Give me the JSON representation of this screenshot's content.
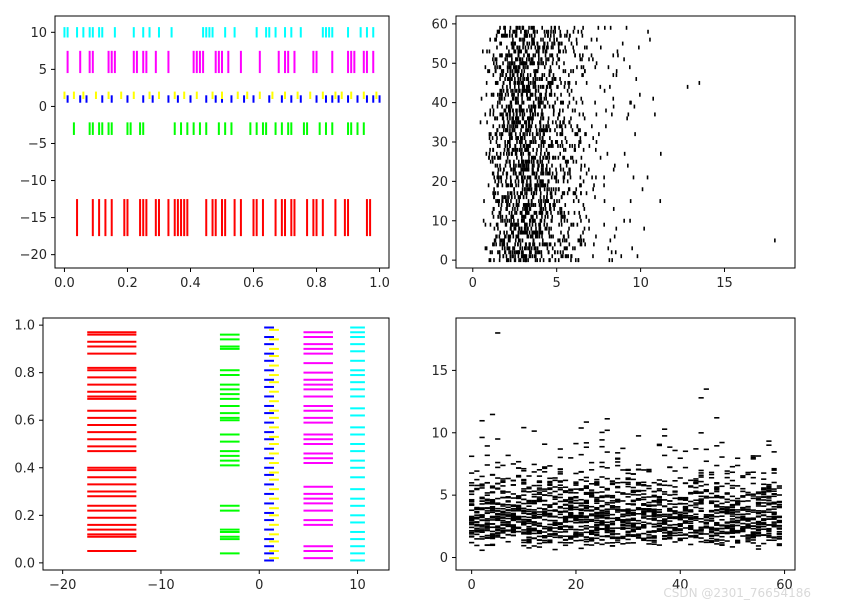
{
  "chart_data": [
    {
      "type": "eventplot",
      "orientation": "horizontal",
      "title": "",
      "xlabel": "",
      "ylabel": "",
      "xlim": [
        -0.03,
        1.03
      ],
      "ylim": [
        -21.8,
        12.2
      ],
      "xticks": [
        0.0,
        0.2,
        0.4,
        0.6,
        0.8,
        1.0
      ],
      "xtick_labels": [
        "0.0",
        "0.2",
        "0.4",
        "0.6",
        "0.8",
        "1.0"
      ],
      "yticks": [
        10,
        5,
        0,
        -5,
        -10,
        -15,
        -20
      ],
      "ytick_labels": [
        "10",
        "5",
        "0",
        "−5",
        "−10",
        "−15",
        "−20"
      ],
      "series": [
        {
          "color": "#ff0000",
          "lineoffset": -15,
          "linelength": 5,
          "events": [
            0.04,
            0.09,
            0.11,
            0.13,
            0.15,
            0.19,
            0.2,
            0.24,
            0.25,
            0.26,
            0.29,
            0.3,
            0.33,
            0.35,
            0.36,
            0.37,
            0.38,
            0.39,
            0.45,
            0.47,
            0.48,
            0.5,
            0.51,
            0.54,
            0.56,
            0.6,
            0.61,
            0.63,
            0.67,
            0.69,
            0.7,
            0.72,
            0.73,
            0.77,
            0.79,
            0.8,
            0.82,
            0.86,
            0.89,
            0.9,
            0.96,
            0.97
          ]
        },
        {
          "color": "#00ff00",
          "lineoffset": -3,
          "linelength": 1.7,
          "events": [
            0.03,
            0.08,
            0.09,
            0.11,
            0.12,
            0.14,
            0.15,
            0.2,
            0.21,
            0.24,
            0.25,
            0.35,
            0.37,
            0.39,
            0.41,
            0.43,
            0.45,
            0.49,
            0.51,
            0.53,
            0.59,
            0.61,
            0.63,
            0.64,
            0.67,
            0.69,
            0.71,
            0.72,
            0.76,
            0.77,
            0.81,
            0.83,
            0.85,
            0.9,
            0.91,
            0.93,
            0.95
          ]
        },
        {
          "color": "#0000ff",
          "lineoffset": 1,
          "linelength": 1,
          "events": [
            0.01,
            0.05,
            0.07,
            0.12,
            0.15,
            0.2,
            0.25,
            0.28,
            0.33,
            0.36,
            0.4,
            0.45,
            0.48,
            0.5,
            0.53,
            0.57,
            0.6,
            0.65,
            0.69,
            0.72,
            0.75,
            0.8,
            0.83,
            0.85,
            0.87,
            0.9,
            0.93,
            0.96,
            0.98,
            1.0
          ]
        },
        {
          "color": "#ffff00",
          "lineoffset": 1.5,
          "linelength": 1,
          "events": [
            0.0,
            0.03,
            0.06,
            0.1,
            0.14,
            0.18,
            0.22,
            0.27,
            0.3,
            0.35,
            0.38,
            0.42,
            0.47,
            0.5,
            0.55,
            0.58,
            0.62,
            0.66,
            0.7,
            0.74,
            0.78,
            0.82,
            0.86,
            0.88,
            0.91,
            0.95,
            0.99
          ]
        },
        {
          "color": "#ff00ff",
          "lineoffset": 6,
          "linelength": 3,
          "events": [
            0.01,
            0.05,
            0.08,
            0.09,
            0.14,
            0.15,
            0.16,
            0.22,
            0.23,
            0.25,
            0.26,
            0.29,
            0.33,
            0.41,
            0.42,
            0.43,
            0.44,
            0.48,
            0.49,
            0.5,
            0.52,
            0.56,
            0.62,
            0.68,
            0.7,
            0.71,
            0.73,
            0.79,
            0.8,
            0.85,
            0.9,
            0.91,
            0.92,
            0.95,
            0.96,
            0.98
          ]
        },
        {
          "color": "#00ffff",
          "lineoffset": 10,
          "linelength": 1.4,
          "events": [
            0.0,
            0.01,
            0.04,
            0.06,
            0.08,
            0.09,
            0.11,
            0.12,
            0.16,
            0.22,
            0.25,
            0.27,
            0.3,
            0.34,
            0.44,
            0.45,
            0.46,
            0.47,
            0.51,
            0.54,
            0.61,
            0.64,
            0.65,
            0.67,
            0.7,
            0.72,
            0.75,
            0.82,
            0.83,
            0.84,
            0.85,
            0.9,
            0.94,
            0.96,
            0.98
          ]
        }
      ]
    },
    {
      "type": "eventplot",
      "orientation": "horizontal",
      "title": "",
      "xlabel": "",
      "ylabel": "",
      "xlim": [
        -1,
        19.2
      ],
      "ylim": [
        -2,
        62
      ],
      "xticks": [
        0,
        5,
        10,
        15
      ],
      "xtick_labels": [
        "0",
        "5",
        "10",
        "15"
      ],
      "yticks": [
        0,
        10,
        20,
        30,
        40,
        50,
        60
      ],
      "ytick_labels": [
        "0",
        "10",
        "20",
        "30",
        "40",
        "50",
        "60"
      ],
      "series": [
        {
          "color": "#000000",
          "rows": 60,
          "linelength": 1,
          "events_summary": "gamma-distributed events per row, dense between 1 and 6, sparse to about 11, outliers near 12.8, 13.5 and 18"
        }
      ]
    },
    {
      "type": "eventplot",
      "orientation": "vertical",
      "title": "",
      "xlabel": "",
      "ylabel": "",
      "xlim": [
        -22,
        13.2
      ],
      "ylim": [
        -0.03,
        1.03
      ],
      "xticks": [
        -20,
        -10,
        0,
        10
      ],
      "xtick_labels": [
        "−20",
        "−10",
        "0",
        "10"
      ],
      "yticks": [
        0.0,
        0.2,
        0.4,
        0.6,
        0.8,
        1.0
      ],
      "ytick_labels": [
        "0.0",
        "0.2",
        "0.4",
        "0.6",
        "0.8",
        "1.0"
      ],
      "series": [
        {
          "color": "#ff0000",
          "lineoffset": -15,
          "linelength": 5,
          "events": [
            0.05,
            0.11,
            0.12,
            0.14,
            0.16,
            0.19,
            0.22,
            0.24,
            0.28,
            0.3,
            0.33,
            0.36,
            0.39,
            0.4,
            0.47,
            0.49,
            0.52,
            0.55,
            0.58,
            0.61,
            0.64,
            0.69,
            0.7,
            0.72,
            0.75,
            0.78,
            0.81,
            0.82,
            0.88,
            0.91,
            0.93,
            0.96,
            0.97
          ]
        },
        {
          "color": "#00ff00",
          "lineoffset": -3,
          "linelength": 2,
          "events": [
            0.04,
            0.1,
            0.11,
            0.13,
            0.14,
            0.22,
            0.24,
            0.41,
            0.43,
            0.45,
            0.47,
            0.51,
            0.54,
            0.6,
            0.61,
            0.63,
            0.66,
            0.69,
            0.71,
            0.73,
            0.75,
            0.79,
            0.81,
            0.9,
            0.91,
            0.94,
            0.96
          ]
        },
        {
          "color": "#0000ff",
          "lineoffset": 1,
          "linelength": 1,
          "events": [
            0.01,
            0.04,
            0.07,
            0.1,
            0.14,
            0.18,
            0.21,
            0.25,
            0.29,
            0.33,
            0.37,
            0.4,
            0.44,
            0.48,
            0.52,
            0.55,
            0.59,
            0.63,
            0.66,
            0.7,
            0.74,
            0.77,
            0.81,
            0.85,
            0.88,
            0.92,
            0.95,
            0.99
          ]
        },
        {
          "color": "#ffff00",
          "lineoffset": 1.5,
          "linelength": 1,
          "events": [
            0.02,
            0.05,
            0.09,
            0.12,
            0.16,
            0.2,
            0.23,
            0.27,
            0.31,
            0.35,
            0.38,
            0.42,
            0.46,
            0.5,
            0.53,
            0.57,
            0.61,
            0.64,
            0.68,
            0.72,
            0.76,
            0.79,
            0.83,
            0.87,
            0.9,
            0.94,
            0.98
          ]
        },
        {
          "color": "#ff00ff",
          "lineoffset": 6,
          "linelength": 3,
          "events": [
            0.02,
            0.05,
            0.07,
            0.16,
            0.18,
            0.22,
            0.25,
            0.27,
            0.29,
            0.32,
            0.42,
            0.44,
            0.46,
            0.5,
            0.52,
            0.54,
            0.59,
            0.61,
            0.64,
            0.66,
            0.7,
            0.73,
            0.75,
            0.77,
            0.8,
            0.84,
            0.88,
            0.9,
            0.92,
            0.95,
            0.97
          ]
        },
        {
          "color": "#00ffff",
          "lineoffset": 10,
          "linelength": 1.5,
          "events": [
            0.01,
            0.04,
            0.07,
            0.1,
            0.13,
            0.17,
            0.2,
            0.24,
            0.27,
            0.31,
            0.36,
            0.4,
            0.43,
            0.47,
            0.5,
            0.54,
            0.57,
            0.62,
            0.65,
            0.7,
            0.73,
            0.76,
            0.79,
            0.81,
            0.85,
            0.89,
            0.92,
            0.95,
            0.97,
            0.99
          ]
        }
      ]
    },
    {
      "type": "eventplot",
      "orientation": "vertical",
      "title": "",
      "xlabel": "",
      "ylabel": "",
      "xlim": [
        -3,
        62
      ],
      "ylim": [
        -1,
        19.2
      ],
      "xticks": [
        0,
        20,
        40,
        60
      ],
      "xtick_labels": [
        "0",
        "20",
        "40",
        "60"
      ],
      "yticks": [
        0,
        5,
        10,
        15
      ],
      "ytick_labels": [
        "0",
        "5",
        "10",
        "15"
      ],
      "series": [
        {
          "color": "#000000",
          "columns": 60,
          "linelength": 1,
          "events_summary": "gamma-distributed events per column, dense between 1 and 6, sparse to about 11, outliers near 12.8, 13.5 and 18"
        }
      ]
    }
  ],
  "watermark": "CSDN @2301_76654186"
}
